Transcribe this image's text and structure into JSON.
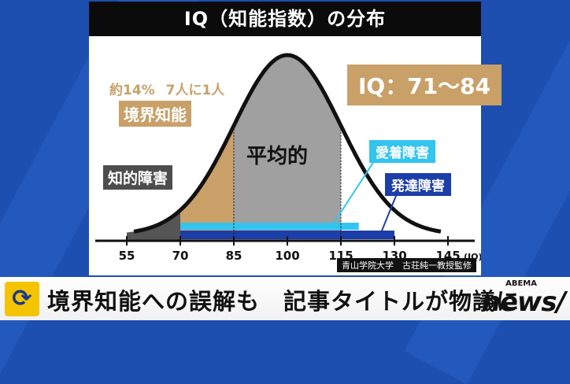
{
  "title": "IQ（知能指数）の分布",
  "range_box": {
    "text": "IQ：71～84",
    "color": "#c8a068"
  },
  "annotation": {
    "prefix": "約14%",
    "suffix": "7人に1人"
  },
  "labels": {
    "borderline": "境界知能",
    "intellectual_disability": "知的障害",
    "average": "平均的",
    "attachment": "愛着障害",
    "developmental": "発達障害"
  },
  "credit": "青山学院大学　古荘純一教授監修",
  "ticker": {
    "icon": "refresh-arrows-icon",
    "text": "境界知能への誤解も　記事タイトルが物議に"
  },
  "logo": {
    "top": "ABEMA",
    "main": "news/"
  },
  "chart_data": {
    "type": "area",
    "title": "IQ（知能指数）の分布",
    "xlabel": "(IQ)",
    "ylabel": "",
    "x_ticks": [
      55,
      70,
      85,
      100,
      115,
      130,
      145
    ],
    "xlim": [
      55,
      145
    ],
    "distribution": {
      "kind": "normal",
      "mean": 100,
      "sd": 15
    },
    "regions": [
      {
        "name": "知的障害",
        "from": 55,
        "to": 70,
        "color": "#555555"
      },
      {
        "name": "境界知能",
        "from": 70,
        "to": 85,
        "color": "#c8a068"
      },
      {
        "name": "平均的",
        "from": 85,
        "to": 115,
        "color": "#a0a0a0"
      }
    ],
    "bars": [
      {
        "name": "愛着障害",
        "from": 70,
        "to": 120,
        "color": "#33c4f0"
      },
      {
        "name": "発達障害",
        "from": 70,
        "to": 130,
        "color": "#1c3ea8"
      }
    ],
    "annotation": "約14%　7人に1人"
  }
}
